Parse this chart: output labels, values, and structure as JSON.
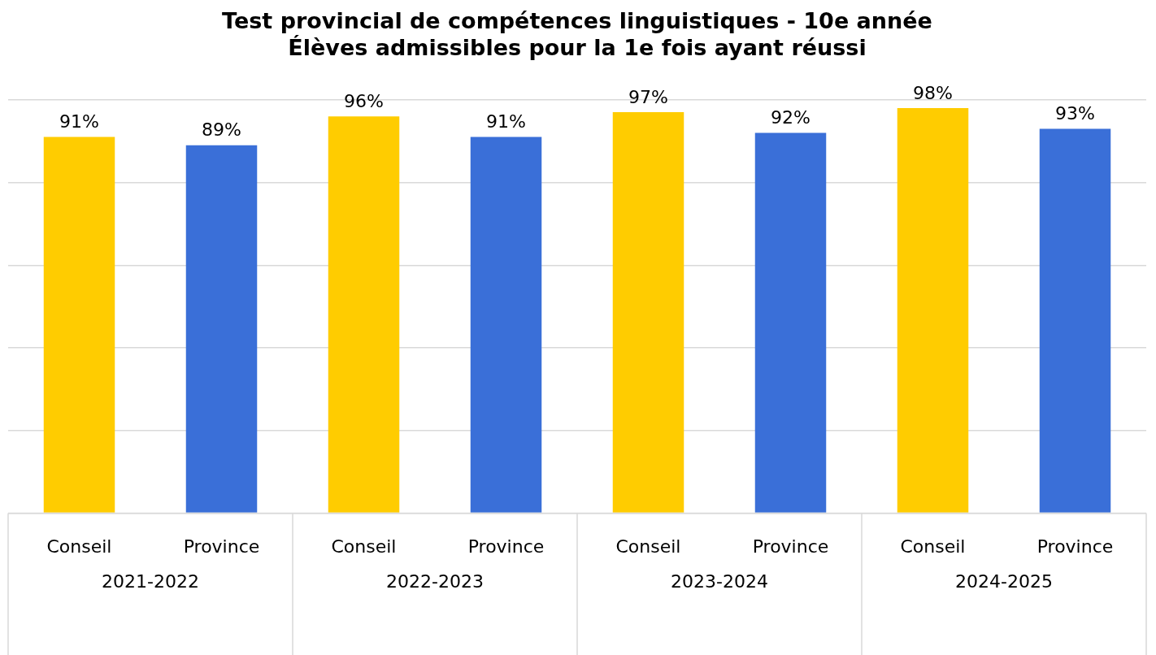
{
  "chart_data": {
    "type": "bar",
    "title": "Test provincial de compétences linguistiques - 10e année\nÉlèves admissibles pour la 1e fois ayant réussi",
    "categories": [
      "2021-2022",
      "2022-2023",
      "2023-2024",
      "2024-2025"
    ],
    "series": [
      {
        "name": "Conseil",
        "color": "#ffcc00",
        "values": [
          91,
          96,
          97,
          98
        ],
        "value_labels": [
          "91%",
          "96%",
          "97%",
          "98%"
        ]
      },
      {
        "name": "Province",
        "color": "#3a6fd8",
        "values": [
          89,
          91,
          92,
          93
        ],
        "value_labels": [
          "89%",
          "91%",
          "92%",
          "93%"
        ]
      }
    ],
    "ylim": [
      0,
      100
    ],
    "yticks": [
      {
        "value": 0,
        "label": null
      },
      {
        "value": 20,
        "label": null
      },
      {
        "value": 40,
        "label": null
      },
      {
        "value": 60,
        "label": null
      },
      {
        "value": 80,
        "label": null
      },
      {
        "value": 100,
        "label": null
      }
    ],
    "tick_labels": "x",
    "grid": "y",
    "legend": false
  }
}
